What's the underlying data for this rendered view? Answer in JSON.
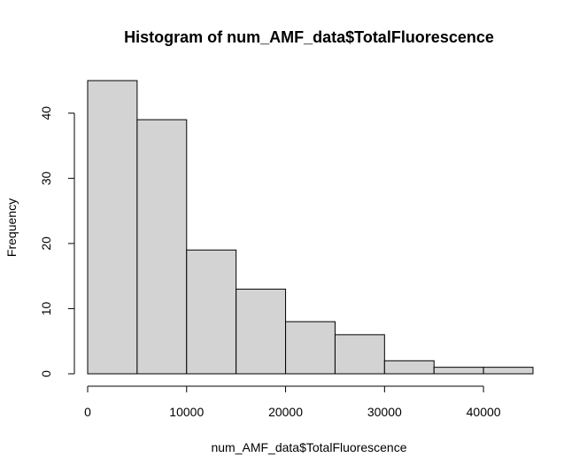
{
  "chart_data": {
    "type": "bar",
    "title": "Histogram of num_AMF_data$TotalFluorescence",
    "xlabel": "num_AMF_data$TotalFluorescence",
    "ylabel": "Frequency",
    "bins": [
      {
        "start": 0,
        "end": 5000,
        "count": 45
      },
      {
        "start": 5000,
        "end": 10000,
        "count": 39
      },
      {
        "start": 10000,
        "end": 15000,
        "count": 19
      },
      {
        "start": 15000,
        "end": 20000,
        "count": 13
      },
      {
        "start": 20000,
        "end": 25000,
        "count": 8
      },
      {
        "start": 25000,
        "end": 30000,
        "count": 6
      },
      {
        "start": 30000,
        "end": 35000,
        "count": 2
      },
      {
        "start": 35000,
        "end": 40000,
        "count": 1
      },
      {
        "start": 40000,
        "end": 45000,
        "count": 1
      }
    ],
    "x_ticks": [
      0,
      10000,
      20000,
      30000,
      40000
    ],
    "y_ticks": [
      0,
      10,
      20,
      30,
      40
    ],
    "xlim": [
      0,
      45000
    ],
    "ylim": [
      0,
      45
    ],
    "bar_color": "#d3d3d3",
    "grid": false
  }
}
